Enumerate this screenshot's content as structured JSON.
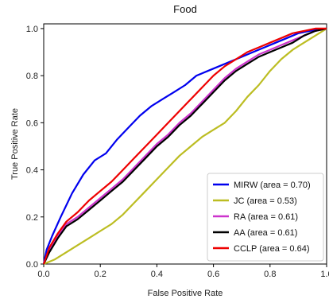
{
  "chart_data": {
    "type": "line",
    "title": "Food",
    "xlabel": "False Positive Rate",
    "ylabel": "True Positive Rate",
    "xlim": [
      0,
      1
    ],
    "ylim": [
      0,
      1.02
    ],
    "xticks": [
      "0.0",
      "0.2",
      "0.4",
      "0.6",
      "0.8",
      "1.0"
    ],
    "yticks": [
      "0.0",
      "0.2",
      "0.4",
      "0.6",
      "0.8",
      "1.0"
    ],
    "legend_position": "bottom-right",
    "series": [
      {
        "name": "MIRW (area = 0.70)",
        "color": "#0000ee",
        "points": [
          [
            0,
            0
          ],
          [
            0.01,
            0.06
          ],
          [
            0.03,
            0.12
          ],
          [
            0.06,
            0.2
          ],
          [
            0.1,
            0.3
          ],
          [
            0.14,
            0.38
          ],
          [
            0.18,
            0.44
          ],
          [
            0.22,
            0.47
          ],
          [
            0.26,
            0.53
          ],
          [
            0.3,
            0.58
          ],
          [
            0.34,
            0.63
          ],
          [
            0.38,
            0.67
          ],
          [
            0.42,
            0.7
          ],
          [
            0.46,
            0.73
          ],
          [
            0.5,
            0.76
          ],
          [
            0.54,
            0.8
          ],
          [
            0.58,
            0.82
          ],
          [
            0.62,
            0.84
          ],
          [
            0.66,
            0.86
          ],
          [
            0.7,
            0.88
          ],
          [
            0.74,
            0.9
          ],
          [
            0.78,
            0.92
          ],
          [
            0.82,
            0.94
          ],
          [
            0.86,
            0.96
          ],
          [
            0.9,
            0.98
          ],
          [
            0.94,
            0.99
          ],
          [
            1,
            1
          ]
        ]
      },
      {
        "name": "JC (area = 0.53)",
        "color": "#bcbd22",
        "points": [
          [
            0,
            0
          ],
          [
            0.04,
            0.02
          ],
          [
            0.08,
            0.05
          ],
          [
            0.12,
            0.08
          ],
          [
            0.16,
            0.11
          ],
          [
            0.2,
            0.14
          ],
          [
            0.24,
            0.17
          ],
          [
            0.28,
            0.21
          ],
          [
            0.32,
            0.26
          ],
          [
            0.36,
            0.31
          ],
          [
            0.4,
            0.36
          ],
          [
            0.44,
            0.41
          ],
          [
            0.48,
            0.46
          ],
          [
            0.52,
            0.5
          ],
          [
            0.56,
            0.54
          ],
          [
            0.6,
            0.57
          ],
          [
            0.64,
            0.6
          ],
          [
            0.68,
            0.65
          ],
          [
            0.72,
            0.71
          ],
          [
            0.76,
            0.76
          ],
          [
            0.8,
            0.82
          ],
          [
            0.84,
            0.87
          ],
          [
            0.88,
            0.91
          ],
          [
            0.92,
            0.94
          ],
          [
            0.96,
            0.97
          ],
          [
            1,
            1
          ]
        ]
      },
      {
        "name": "RA (area = 0.61)",
        "color": "#cc33cc",
        "points": [
          [
            0,
            0
          ],
          [
            0.02,
            0.06
          ],
          [
            0.05,
            0.12
          ],
          [
            0.08,
            0.17
          ],
          [
            0.12,
            0.2
          ],
          [
            0.16,
            0.24
          ],
          [
            0.2,
            0.28
          ],
          [
            0.24,
            0.32
          ],
          [
            0.28,
            0.36
          ],
          [
            0.32,
            0.41
          ],
          [
            0.36,
            0.46
          ],
          [
            0.4,
            0.51
          ],
          [
            0.44,
            0.55
          ],
          [
            0.48,
            0.6
          ],
          [
            0.52,
            0.64
          ],
          [
            0.56,
            0.69
          ],
          [
            0.6,
            0.74
          ],
          [
            0.64,
            0.79
          ],
          [
            0.68,
            0.83
          ],
          [
            0.72,
            0.86
          ],
          [
            0.76,
            0.89
          ],
          [
            0.8,
            0.91
          ],
          [
            0.84,
            0.93
          ],
          [
            0.88,
            0.95
          ],
          [
            0.92,
            0.97
          ],
          [
            0.96,
            0.99
          ],
          [
            1,
            1
          ]
        ]
      },
      {
        "name": "AA (area = 0.61)",
        "color": "#000000",
        "points": [
          [
            0,
            0
          ],
          [
            0.02,
            0.05
          ],
          [
            0.05,
            0.11
          ],
          [
            0.08,
            0.16
          ],
          [
            0.12,
            0.19
          ],
          [
            0.16,
            0.23
          ],
          [
            0.2,
            0.27
          ],
          [
            0.24,
            0.31
          ],
          [
            0.28,
            0.35
          ],
          [
            0.32,
            0.4
          ],
          [
            0.36,
            0.45
          ],
          [
            0.4,
            0.5
          ],
          [
            0.44,
            0.54
          ],
          [
            0.48,
            0.59
          ],
          [
            0.52,
            0.63
          ],
          [
            0.56,
            0.68
          ],
          [
            0.6,
            0.73
          ],
          [
            0.64,
            0.78
          ],
          [
            0.68,
            0.82
          ],
          [
            0.72,
            0.85
          ],
          [
            0.76,
            0.88
          ],
          [
            0.8,
            0.9
          ],
          [
            0.84,
            0.92
          ],
          [
            0.88,
            0.94
          ],
          [
            0.92,
            0.97
          ],
          [
            0.96,
            0.99
          ],
          [
            1,
            1
          ]
        ]
      },
      {
        "name": "CCLP (area = 0.64)",
        "color": "#ee0000",
        "points": [
          [
            0,
            0
          ],
          [
            0.02,
            0.07
          ],
          [
            0.05,
            0.13
          ],
          [
            0.08,
            0.18
          ],
          [
            0.12,
            0.22
          ],
          [
            0.16,
            0.27
          ],
          [
            0.2,
            0.31
          ],
          [
            0.24,
            0.35
          ],
          [
            0.28,
            0.4
          ],
          [
            0.32,
            0.45
          ],
          [
            0.36,
            0.5
          ],
          [
            0.4,
            0.55
          ],
          [
            0.44,
            0.6
          ],
          [
            0.48,
            0.65
          ],
          [
            0.52,
            0.7
          ],
          [
            0.56,
            0.75
          ],
          [
            0.6,
            0.8
          ],
          [
            0.64,
            0.84
          ],
          [
            0.68,
            0.87
          ],
          [
            0.72,
            0.9
          ],
          [
            0.76,
            0.92
          ],
          [
            0.8,
            0.94
          ],
          [
            0.84,
            0.96
          ],
          [
            0.88,
            0.98
          ],
          [
            0.92,
            0.99
          ],
          [
            0.96,
            1.0
          ],
          [
            1,
            1
          ]
        ]
      }
    ]
  }
}
